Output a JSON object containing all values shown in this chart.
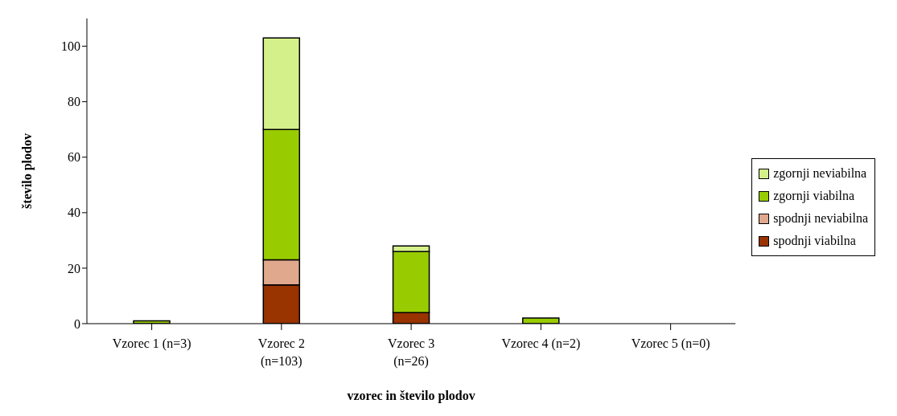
{
  "chart_data": {
    "type": "bar",
    "stacked": true,
    "xlabel": "vzorec in število plodov",
    "ylabel": "število plodov",
    "categories": [
      "Vzorec 1 (n=3)",
      "Vzorec 2 (n=103)",
      "Vzorec 3 (n=26)",
      "Vzorec 4 (n=2)",
      "Vzorec 5 (n=0)"
    ],
    "series": [
      {
        "name": "spodnji viabilna",
        "color": "#993300",
        "values": [
          0,
          14,
          4,
          0,
          0
        ]
      },
      {
        "name": "spodnji neviabilna",
        "color": "#e0a88c",
        "values": [
          0,
          9,
          0,
          0,
          0
        ]
      },
      {
        "name": "zgornji viabilna",
        "color": "#99cc00",
        "values": [
          1,
          47,
          22,
          2,
          0
        ]
      },
      {
        "name": "zgornji neviabilna",
        "color": "#d4f08a",
        "values": [
          0,
          33,
          2,
          0,
          0
        ]
      }
    ],
    "ylim": [
      0,
      110
    ],
    "yticks": [
      0,
      20,
      40,
      60,
      80,
      100
    ],
    "grid": false,
    "legend": "right"
  }
}
